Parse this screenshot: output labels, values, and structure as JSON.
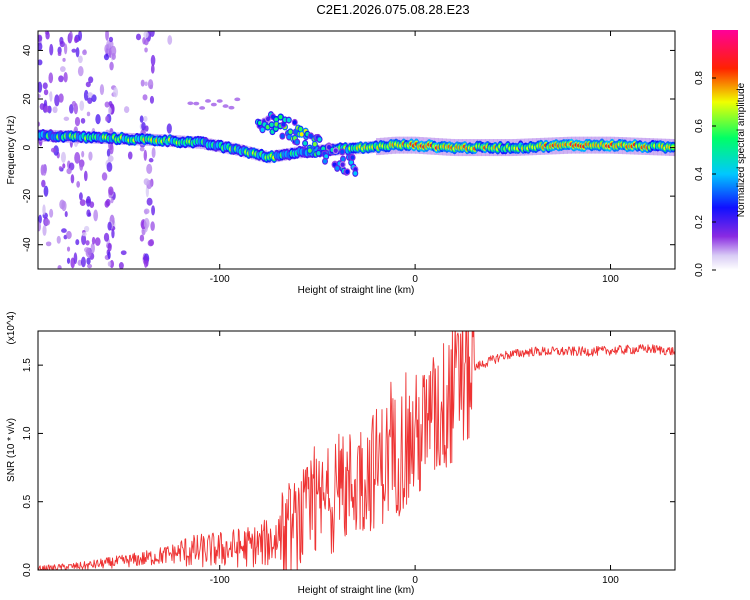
{
  "title": "C2E1.2026.075.08.28.E23",
  "chart_data": [
    {
      "type": "heatmap",
      "xlabel": "Height of straight line (km)",
      "ylabel": "Frequency (Hz)",
      "xlim": [
        -193,
        133
      ],
      "ylim": [
        -50,
        48
      ],
      "xticks": [
        -100,
        0,
        100
      ],
      "xtick_labels": [
        "-100",
        "0",
        "100"
      ],
      "yticks": [
        -40,
        -20,
        0,
        20,
        40
      ],
      "ytick_labels": [
        "-40",
        "-20",
        "0",
        "20",
        "40"
      ],
      "colorbar": {
        "label": "Normalized spectral amplitude",
        "range": [
          0,
          1
        ],
        "ticks": [
          0.0,
          0.2,
          0.4,
          0.6,
          0.8
        ],
        "tick_labels": [
          "0.0",
          "0.2",
          "0.4",
          "0.6",
          "0.8"
        ]
      },
      "ridge": [
        {
          "x": -193,
          "f": 5,
          "amp": 0.5
        },
        {
          "x": -160,
          "f": 4,
          "amp": 0.55
        },
        {
          "x": -130,
          "f": 3,
          "amp": 0.65
        },
        {
          "x": -110,
          "f": 2,
          "amp": 0.5
        },
        {
          "x": -90,
          "f": -1,
          "amp": 0.55
        },
        {
          "x": -75,
          "f": -4,
          "amp": 0.6
        },
        {
          "x": -60,
          "f": -2,
          "amp": 0.45
        },
        {
          "x": -45,
          "f": -1,
          "amp": 0.5
        },
        {
          "x": -25,
          "f": 0,
          "amp": 0.65
        },
        {
          "x": -10,
          "f": 1,
          "amp": 0.7
        },
        {
          "x": 0,
          "f": 1,
          "amp": 0.75
        },
        {
          "x": 20,
          "f": 0,
          "amp": 0.8
        },
        {
          "x": 50,
          "f": 0,
          "amp": 0.6
        },
        {
          "x": 80,
          "f": 1,
          "amp": 0.8
        },
        {
          "x": 100,
          "f": 1,
          "amp": 0.85
        },
        {
          "x": 133,
          "f": 0,
          "amp": 0.6
        }
      ],
      "secondary_band": [
        {
          "x": -78,
          "f": 11,
          "amp": 0.5
        },
        {
          "x": -65,
          "f": 8,
          "amp": 0.55
        },
        {
          "x": -55,
          "f": 3,
          "amp": 0.6
        },
        {
          "x": -45,
          "f": -2,
          "amp": 0.5
        },
        {
          "x": -35,
          "f": -7,
          "amp": 0.35
        }
      ]
    },
    {
      "type": "line",
      "xlabel": "Height of straight line (km)",
      "ylabel": "SNR (10 * v/v)",
      "y_scale_note": "(x10^4)",
      "xlim": [
        -193,
        133
      ],
      "ylim": [
        0,
        1.75
      ],
      "xticks": [
        -100,
        0,
        100
      ],
      "xtick_labels": [
        "-100",
        "0",
        "100"
      ],
      "yticks": [
        0.0,
        0.5,
        1.0,
        1.5
      ],
      "ytick_labels": [
        "0.0",
        "0.5",
        "1.0",
        "1.5"
      ],
      "series": [
        {
          "name": "SNR",
          "color": "#ee3333",
          "trend": [
            {
              "x": -193,
              "y": 0.01
            },
            {
              "x": -170,
              "y": 0.03
            },
            {
              "x": -140,
              "y": 0.08
            },
            {
              "x": -120,
              "y": 0.13
            },
            {
              "x": -100,
              "y": 0.15
            },
            {
              "x": -80,
              "y": 0.18
            },
            {
              "x": -65,
              "y": 0.25
            },
            {
              "x": -55,
              "y": 0.4
            },
            {
              "x": -40,
              "y": 0.55
            },
            {
              "x": -25,
              "y": 0.7
            },
            {
              "x": -10,
              "y": 0.85
            },
            {
              "x": 0,
              "y": 0.95
            },
            {
              "x": 10,
              "y": 1.1
            },
            {
              "x": 20,
              "y": 1.3
            },
            {
              "x": 30,
              "y": 1.48
            },
            {
              "x": 45,
              "y": 1.57
            },
            {
              "x": 60,
              "y": 1.6
            },
            {
              "x": 90,
              "y": 1.6
            },
            {
              "x": 120,
              "y": 1.62
            },
            {
              "x": 133,
              "y": 1.6
            }
          ]
        }
      ]
    }
  ]
}
